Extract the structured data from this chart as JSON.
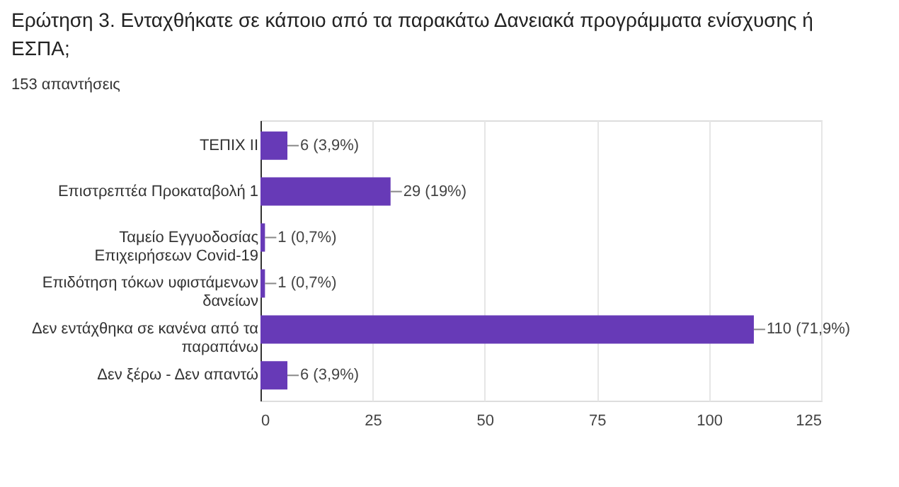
{
  "chart_data": {
    "type": "bar",
    "orientation": "horizontal",
    "title": "Ερώτηση 3. Ενταχθήκατε σε κάποιο από τα παρακάτω Δανειακά προγράμματα ενίσχυσης ή ΕΣΠΑ;",
    "subtitle": "153 απαντήσεις",
    "categories": [
      "ΤΕΠΙΧ ΙΙ",
      "Επιστρεπτέα Προκαταβολή 1",
      "Ταμείο Εγγυοδοσίας Επιχειρήσεων Covid-19",
      "Επιδότηση τόκων υφιστάμενων δανείων",
      "Δεν εντάχθηκα σε κανένα από τα παραπάνω",
      "Δεν ξέρω - Δεν απαντώ"
    ],
    "values": [
      6,
      29,
      1,
      1,
      110,
      6
    ],
    "value_labels": [
      "6 (3,9%)",
      "29 (19%)",
      "1 (0,7%)",
      "1 (0,7%)",
      "110 (71,9%)",
      "6 (3,9%)"
    ],
    "color": "#673ab7",
    "xlim": [
      0,
      125
    ],
    "xticks": [
      0,
      25,
      50,
      75,
      100,
      125
    ],
    "grid": "x"
  }
}
